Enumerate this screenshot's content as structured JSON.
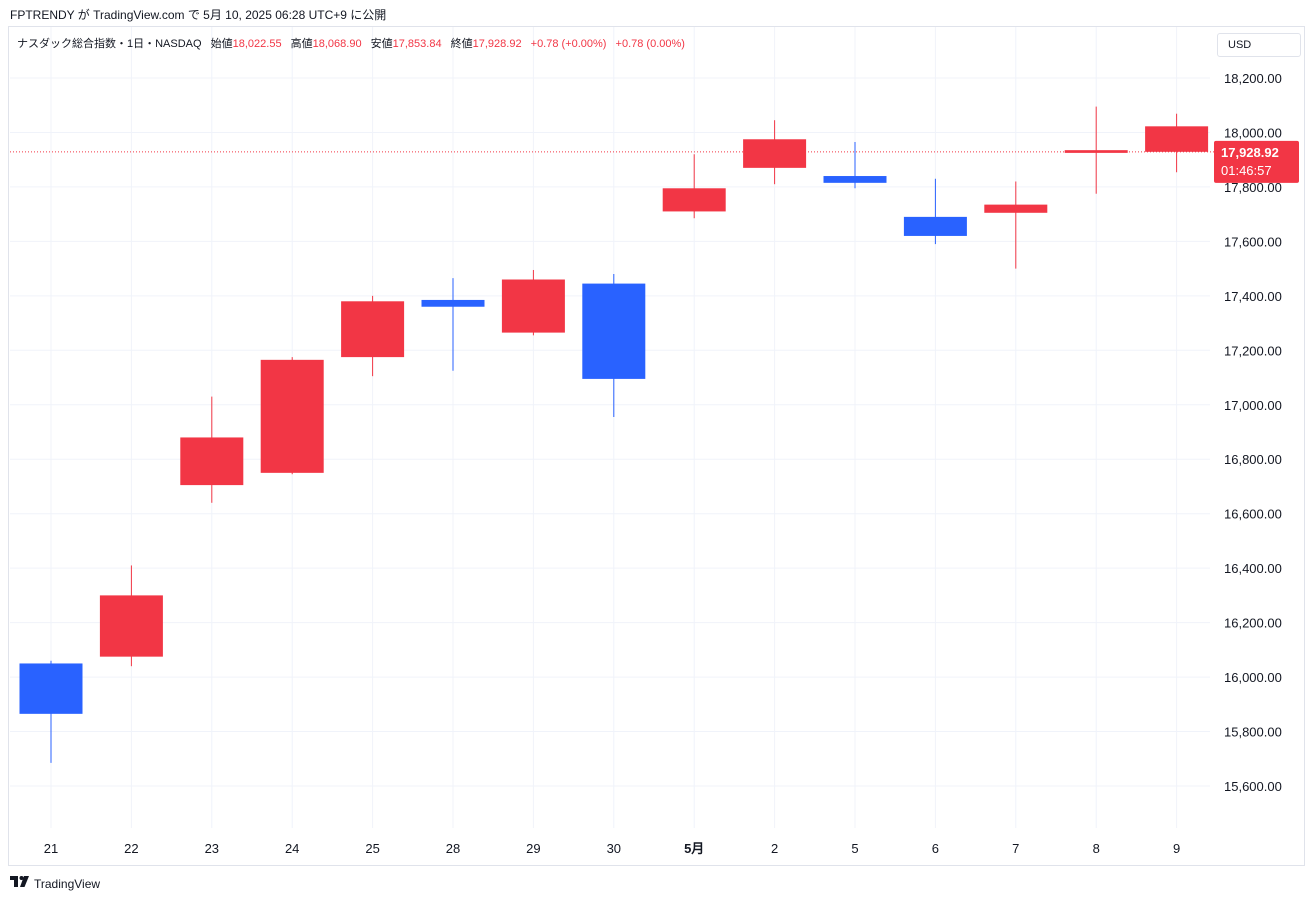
{
  "header": {
    "publisher_line": "FPTRENDY が TradingView.com で 5月 10, 2025 06:28 UTC+9 に公開"
  },
  "legend": {
    "symbol": "ナスダック総合指数・1日・NASDAQ",
    "open_label": "始値",
    "open_value": "18,022.55",
    "high_label": "高値",
    "high_value": "18,068.90",
    "low_label": "安値",
    "low_value": "17,853.84",
    "close_label": "終値",
    "close_value": "17,928.92",
    "change1": "+0.78 (+0.00%)",
    "change2": "+0.78 (0.00%)"
  },
  "currency": "USD",
  "price_tag": {
    "price": "17,928.92",
    "countdown": "01:46:57"
  },
  "footer": {
    "brand": "TradingView"
  },
  "colors": {
    "up": "#2962ff",
    "down": "#f23645",
    "grid": "#f0f3fa",
    "text": "#131722"
  },
  "chart_data": {
    "type": "candlestick",
    "current_price": 17928.92,
    "y_ticks": [
      15600,
      15800,
      16000,
      16200,
      16400,
      16600,
      16800,
      17000,
      17200,
      17400,
      17600,
      17800,
      18000,
      18200
    ],
    "y_tick_labels": [
      "15,600.00",
      "15,800.00",
      "16,000.00",
      "16,200.00",
      "16,400.00",
      "16,600.00",
      "16,800.00",
      "17,000.00",
      "17,200.00",
      "17,400.00",
      "17,600.00",
      "17,800.00",
      "18,000.00",
      "18,200.00"
    ],
    "categories": [
      "21",
      "22",
      "23",
      "24",
      "25",
      "28",
      "29",
      "30",
      "5月",
      "2",
      "5",
      "6",
      "7",
      "8",
      "9"
    ],
    "candles": [
      {
        "o": 15865,
        "h": 16060,
        "l": 15685,
        "c": 16050
      },
      {
        "o": 16300,
        "h": 16410,
        "l": 16040,
        "c": 16075
      },
      {
        "o": 16880,
        "h": 17030,
        "l": 16640,
        "c": 16705
      },
      {
        "o": 17165,
        "h": 17175,
        "l": 16745,
        "c": 16750
      },
      {
        "o": 17380,
        "h": 17400,
        "l": 17105,
        "c": 17175
      },
      {
        "o": 17360,
        "h": 17465,
        "l": 17125,
        "c": 17385
      },
      {
        "o": 17460,
        "h": 17495,
        "l": 17255,
        "c": 17265
      },
      {
        "o": 17095,
        "h": 17480,
        "l": 16955,
        "c": 17445
      },
      {
        "o": 17795,
        "h": 17920,
        "l": 17685,
        "c": 17710
      },
      {
        "o": 17975,
        "h": 18045,
        "l": 17810,
        "c": 17870
      },
      {
        "o": 17815,
        "h": 17965,
        "l": 17795,
        "c": 17840
      },
      {
        "o": 17620,
        "h": 17830,
        "l": 17590,
        "c": 17690
      },
      {
        "o": 17735,
        "h": 17820,
        "l": 17500,
        "c": 17705
      },
      {
        "o": 17935,
        "h": 18095,
        "l": 17775,
        "c": 17925
      },
      {
        "o": 18022.55,
        "h": 18068.9,
        "l": 17853.84,
        "c": 17928.92
      }
    ],
    "ylim": [
      15560,
      18330
    ]
  }
}
